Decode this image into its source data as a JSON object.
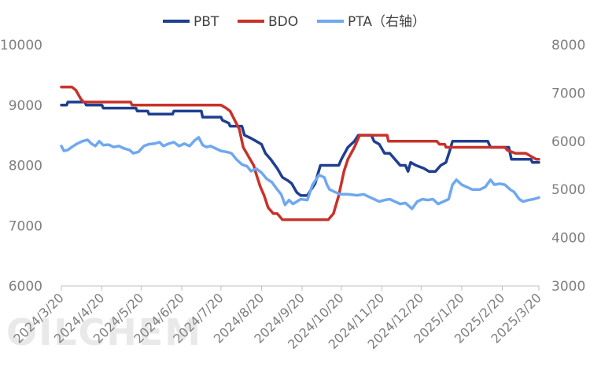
{
  "watermark": "OILCHEM",
  "chart_data": {
    "type": "line",
    "legend": [
      "PBT",
      "BDO",
      "PTA（右轴）"
    ],
    "legend_position": "top",
    "grid": false,
    "left_axis": {
      "ylim": [
        6000,
        10000
      ],
      "ticks": [
        "6000",
        "7000",
        "8000",
        "9000",
        "10000"
      ]
    },
    "right_axis": {
      "ylim": [
        3000,
        8000
      ],
      "ticks": [
        "3000",
        "4000",
        "5000",
        "6000",
        "7000",
        "8000"
      ]
    },
    "x_range": [
      "2024-03-20",
      "2025-03-20"
    ],
    "x_ticks": [
      "2024/3/20",
      "2024/4/20",
      "2024/5/20",
      "2024/6/20",
      "2024/7/20",
      "2024/8/20",
      "2024/9/20",
      "2024/10/20",
      "2024/11/20",
      "2024/12/20",
      "2025/1/20",
      "2025/2/20",
      "2025/3/20"
    ],
    "series": [
      {
        "name": "PBT",
        "axis": "left",
        "color": "#1f3f8f",
        "points": [
          [
            "2024-03-20",
            9000
          ],
          [
            "2024-03-24",
            9000
          ],
          [
            "2024-03-25",
            9050
          ],
          [
            "2024-04-07",
            9050
          ],
          [
            "2024-04-08",
            9000
          ],
          [
            "2024-04-20",
            9000
          ],
          [
            "2024-04-21",
            8950
          ],
          [
            "2024-05-16",
            8950
          ],
          [
            "2024-05-17",
            8900
          ],
          [
            "2024-05-25",
            8900
          ],
          [
            "2024-05-26",
            8850
          ],
          [
            "2024-06-13",
            8850
          ],
          [
            "2024-06-14",
            8900
          ],
          [
            "2024-07-05",
            8900
          ],
          [
            "2024-07-06",
            8800
          ],
          [
            "2024-07-20",
            8800
          ],
          [
            "2024-07-21",
            8750
          ],
          [
            "2024-07-26",
            8700
          ],
          [
            "2024-07-27",
            8650
          ],
          [
            "2024-08-05",
            8650
          ],
          [
            "2024-08-07",
            8500
          ],
          [
            "2024-08-12",
            8450
          ],
          [
            "2024-08-16",
            8400
          ],
          [
            "2024-08-20",
            8350
          ],
          [
            "2024-08-23",
            8200
          ],
          [
            "2024-08-27",
            8100
          ],
          [
            "2024-09-01",
            7950
          ],
          [
            "2024-09-05",
            7800
          ],
          [
            "2024-09-09",
            7750
          ],
          [
            "2024-09-12",
            7700
          ],
          [
            "2024-09-16",
            7550
          ],
          [
            "2024-09-19",
            7500
          ],
          [
            "2024-09-24",
            7500
          ],
          [
            "2024-09-30",
            7700
          ],
          [
            "2024-10-04",
            8000
          ],
          [
            "2024-10-15",
            8000
          ],
          [
            "2024-10-18",
            8000
          ],
          [
            "2024-10-20",
            8100
          ],
          [
            "2024-10-25",
            8300
          ],
          [
            "2024-10-30",
            8400
          ],
          [
            "2024-11-02",
            8500
          ],
          [
            "2024-11-08",
            8500
          ],
          [
            "2024-11-12",
            8500
          ],
          [
            "2024-11-14",
            8400
          ],
          [
            "2024-11-18",
            8350
          ],
          [
            "2024-11-22",
            8200
          ],
          [
            "2024-11-26",
            8200
          ],
          [
            "2024-11-30",
            8100
          ],
          [
            "2024-12-04",
            8000
          ],
          [
            "2024-12-08",
            8000
          ],
          [
            "2024-12-10",
            7900
          ],
          [
            "2024-12-12",
            8050
          ],
          [
            "2024-12-16",
            8000
          ],
          [
            "2024-12-22",
            7950
          ],
          [
            "2024-12-26",
            7900
          ],
          [
            "2024-12-31",
            7900
          ],
          [
            "2025-01-04",
            8000
          ],
          [
            "2025-01-08",
            8050
          ],
          [
            "2025-01-11",
            8250
          ],
          [
            "2025-01-13",
            8400
          ],
          [
            "2025-02-09",
            8400
          ],
          [
            "2025-02-11",
            8300
          ],
          [
            "2025-02-25",
            8300
          ],
          [
            "2025-02-27",
            8100
          ],
          [
            "2025-03-14",
            8100
          ],
          [
            "2025-03-15",
            8050
          ],
          [
            "2025-03-20",
            8050
          ]
        ]
      },
      {
        "name": "BDO",
        "axis": "left",
        "color": "#c8322a",
        "points": [
          [
            "2024-03-20",
            9300
          ],
          [
            "2024-03-28",
            9300
          ],
          [
            "2024-03-31",
            9250
          ],
          [
            "2024-04-04",
            9100
          ],
          [
            "2024-04-06",
            9050
          ],
          [
            "2024-05-12",
            9050
          ],
          [
            "2024-05-13",
            9000
          ],
          [
            "2024-07-20",
            9000
          ],
          [
            "2024-07-24",
            8950
          ],
          [
            "2024-07-27",
            8900
          ],
          [
            "2024-08-03",
            8600
          ],
          [
            "2024-08-06",
            8300
          ],
          [
            "2024-08-10",
            8150
          ],
          [
            "2024-08-14",
            8000
          ],
          [
            "2024-08-16",
            7850
          ],
          [
            "2024-08-19",
            7650
          ],
          [
            "2024-08-22",
            7500
          ],
          [
            "2024-08-25",
            7300
          ],
          [
            "2024-08-29",
            7200
          ],
          [
            "2024-09-01",
            7200
          ],
          [
            "2024-09-05",
            7100
          ],
          [
            "2024-09-10",
            7100
          ],
          [
            "2024-09-24",
            7100
          ],
          [
            "2024-10-10",
            7100
          ],
          [
            "2024-10-14",
            7200
          ],
          [
            "2024-10-18",
            7500
          ],
          [
            "2024-10-22",
            7900
          ],
          [
            "2024-10-25",
            8100
          ],
          [
            "2024-10-30",
            8300
          ],
          [
            "2024-11-03",
            8500
          ],
          [
            "2024-11-05",
            8500
          ],
          [
            "2024-11-24",
            8500
          ],
          [
            "2024-11-25",
            8400
          ],
          [
            "2025-01-01",
            8400
          ],
          [
            "2025-01-03",
            8350
          ],
          [
            "2025-01-07",
            8350
          ],
          [
            "2025-01-08",
            8300
          ],
          [
            "2025-02-22",
            8300
          ],
          [
            "2025-02-24",
            8250
          ],
          [
            "2025-03-02",
            8200
          ],
          [
            "2025-03-10",
            8200
          ],
          [
            "2025-03-14",
            8150
          ],
          [
            "2025-03-18",
            8100
          ],
          [
            "2025-03-20",
            8100
          ]
        ]
      },
      {
        "name": "PTA（右轴）",
        "axis": "right",
        "color": "#6fa8f0",
        "points": [
          [
            "2024-03-20",
            5900
          ],
          [
            "2024-03-22",
            5800
          ],
          [
            "2024-03-25",
            5820
          ],
          [
            "2024-03-28",
            5880
          ],
          [
            "2024-04-01",
            5950
          ],
          [
            "2024-04-05",
            6000
          ],
          [
            "2024-04-09",
            6030
          ],
          [
            "2024-04-12",
            5950
          ],
          [
            "2024-04-15",
            5900
          ],
          [
            "2024-04-18",
            6000
          ],
          [
            "2024-04-21",
            5920
          ],
          [
            "2024-04-25",
            5930
          ],
          [
            "2024-04-29",
            5880
          ],
          [
            "2024-05-03",
            5900
          ],
          [
            "2024-05-07",
            5850
          ],
          [
            "2024-05-11",
            5820
          ],
          [
            "2024-05-14",
            5750
          ],
          [
            "2024-05-18",
            5780
          ],
          [
            "2024-05-22",
            5900
          ],
          [
            "2024-05-26",
            5940
          ],
          [
            "2024-05-30",
            5950
          ],
          [
            "2024-06-03",
            5980
          ],
          [
            "2024-06-06",
            5900
          ],
          [
            "2024-06-10",
            5950
          ],
          [
            "2024-06-14",
            5980
          ],
          [
            "2024-06-18",
            5900
          ],
          [
            "2024-06-22",
            5950
          ],
          [
            "2024-06-26",
            5900
          ],
          [
            "2024-06-30",
            6020
          ],
          [
            "2024-07-03",
            6080
          ],
          [
            "2024-07-06",
            5920
          ],
          [
            "2024-07-09",
            5880
          ],
          [
            "2024-07-12",
            5900
          ],
          [
            "2024-07-16",
            5850
          ],
          [
            "2024-07-20",
            5800
          ],
          [
            "2024-07-24",
            5780
          ],
          [
            "2024-07-28",
            5750
          ],
          [
            "2024-08-01",
            5620
          ],
          [
            "2024-08-05",
            5520
          ],
          [
            "2024-08-09",
            5480
          ],
          [
            "2024-08-12",
            5380
          ],
          [
            "2024-08-16",
            5430
          ],
          [
            "2024-08-20",
            5350
          ],
          [
            "2024-08-24",
            5220
          ],
          [
            "2024-08-28",
            5150
          ],
          [
            "2024-09-01",
            5000
          ],
          [
            "2024-09-04",
            4900
          ],
          [
            "2024-09-07",
            4680
          ],
          [
            "2024-09-10",
            4780
          ],
          [
            "2024-09-13",
            4700
          ],
          [
            "2024-09-16",
            4750
          ],
          [
            "2024-09-19",
            4800
          ],
          [
            "2024-09-24",
            4780
          ],
          [
            "2024-09-28",
            5100
          ],
          [
            "2024-10-03",
            5300
          ],
          [
            "2024-10-07",
            5250
          ],
          [
            "2024-10-09",
            5100
          ],
          [
            "2024-10-11",
            5000
          ],
          [
            "2024-10-15",
            4950
          ],
          [
            "2024-10-19",
            4900
          ],
          [
            "2024-10-25",
            4900
          ],
          [
            "2024-11-01",
            4880
          ],
          [
            "2024-11-06",
            4900
          ],
          [
            "2024-11-10",
            4850
          ],
          [
            "2024-11-14",
            4800
          ],
          [
            "2024-11-18",
            4750
          ],
          [
            "2024-11-22",
            4780
          ],
          [
            "2024-11-26",
            4800
          ],
          [
            "2024-11-30",
            4750
          ],
          [
            "2024-12-04",
            4700
          ],
          [
            "2024-12-08",
            4720
          ],
          [
            "2024-12-11",
            4650
          ],
          [
            "2024-12-13",
            4600
          ],
          [
            "2024-12-17",
            4750
          ],
          [
            "2024-12-21",
            4800
          ],
          [
            "2024-12-25",
            4780
          ],
          [
            "2024-12-29",
            4800
          ],
          [
            "2025-01-02",
            4700
          ],
          [
            "2025-01-06",
            4750
          ],
          [
            "2025-01-10",
            4800
          ],
          [
            "2025-01-13",
            5100
          ],
          [
            "2025-01-16",
            5200
          ],
          [
            "2025-01-20",
            5100
          ],
          [
            "2025-01-24",
            5050
          ],
          [
            "2025-01-28",
            5000
          ],
          [
            "2025-02-03",
            5000
          ],
          [
            "2025-02-07",
            5050
          ],
          [
            "2025-02-11",
            5200
          ],
          [
            "2025-02-14",
            5100
          ],
          [
            "2025-02-18",
            5120
          ],
          [
            "2025-02-22",
            5100
          ],
          [
            "2025-02-26",
            5000
          ],
          [
            "2025-03-01",
            4950
          ],
          [
            "2025-03-05",
            4800
          ],
          [
            "2025-03-08",
            4750
          ],
          [
            "2025-03-12",
            4780
          ],
          [
            "2025-03-16",
            4800
          ],
          [
            "2025-03-20",
            4830
          ]
        ]
      }
    ]
  }
}
